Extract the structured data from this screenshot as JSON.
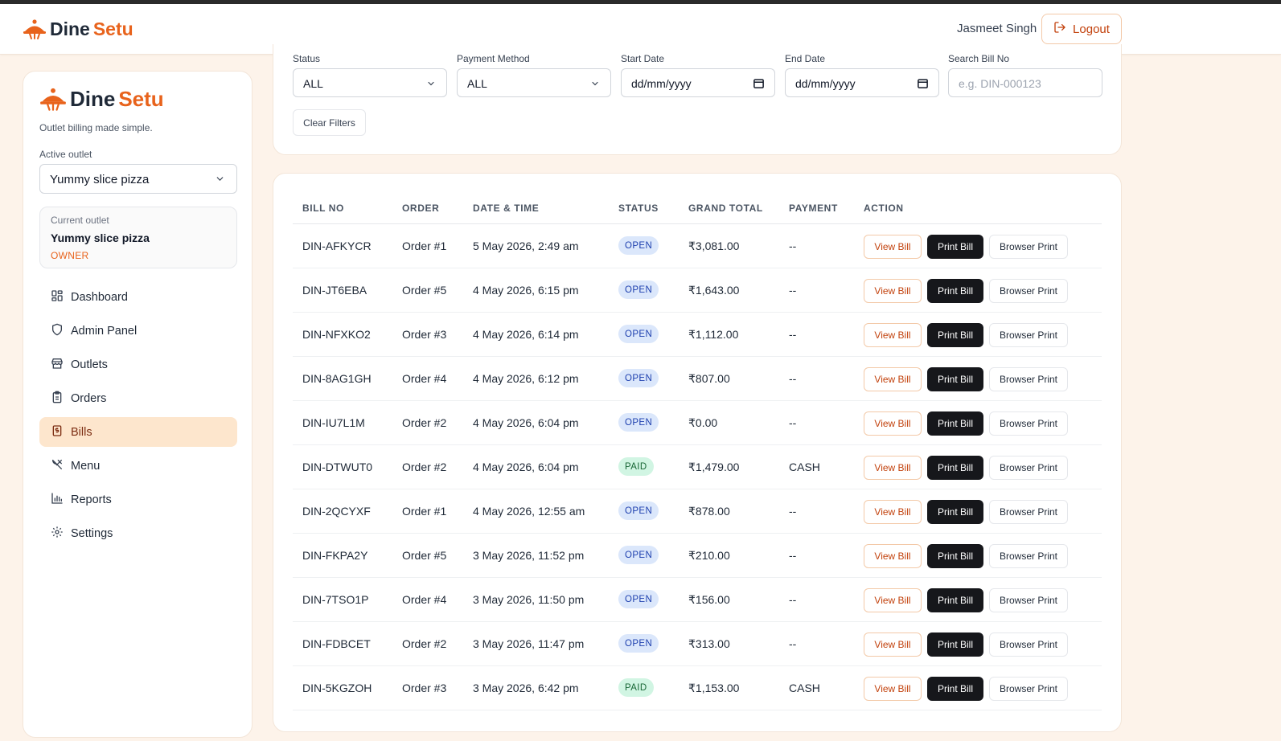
{
  "brand": {
    "word1": "Dine",
    "word2": "Setu",
    "tagline": "Outlet billing made simple."
  },
  "header": {
    "user_name": "Jasmeet Singh",
    "logout_label": "Logout"
  },
  "sidebar": {
    "active_outlet_label": "Active outlet",
    "active_outlet_value": "Yummy slice pizza",
    "current_outlet": {
      "label": "Current outlet",
      "name": "Yummy slice pizza",
      "role": "OWNER"
    },
    "items": [
      {
        "label": "Dashboard",
        "icon": "dashboard-icon"
      },
      {
        "label": "Admin Panel",
        "icon": "shield-icon"
      },
      {
        "label": "Outlets",
        "icon": "store-icon"
      },
      {
        "label": "Orders",
        "icon": "clipboard-icon"
      },
      {
        "label": "Bills",
        "icon": "receipt-icon"
      },
      {
        "label": "Menu",
        "icon": "utensils-icon"
      },
      {
        "label": "Reports",
        "icon": "bar-chart-icon"
      },
      {
        "label": "Settings",
        "icon": "gear-icon"
      }
    ],
    "active_item": "Bills"
  },
  "filters": {
    "status": {
      "label": "Status",
      "value": "ALL"
    },
    "payment_method": {
      "label": "Payment Method",
      "value": "ALL"
    },
    "start_date": {
      "label": "Start Date",
      "value": "dd/mm/yyyy"
    },
    "end_date": {
      "label": "End Date",
      "value": "dd/mm/yyyy"
    },
    "search_bill": {
      "label": "Search Bill No",
      "placeholder": "e.g. DIN-000123"
    },
    "clear_label": "Clear Filters"
  },
  "table": {
    "columns": [
      "BILL NO",
      "ORDER",
      "DATE & TIME",
      "STATUS",
      "GRAND TOTAL",
      "PAYMENT",
      "ACTION"
    ],
    "action_labels": {
      "view": "View Bill",
      "print": "Print Bill",
      "browser": "Browser Print"
    },
    "rows": [
      {
        "bill_no": "DIN-AFKYCR",
        "order": "Order #1",
        "datetime": "5 May 2026, 2:49 am",
        "status": "OPEN",
        "total": "₹3,081.00",
        "payment": "--"
      },
      {
        "bill_no": "DIN-JT6EBA",
        "order": "Order #5",
        "datetime": "4 May 2026, 6:15 pm",
        "status": "OPEN",
        "total": "₹1,643.00",
        "payment": "--"
      },
      {
        "bill_no": "DIN-NFXKO2",
        "order": "Order #3",
        "datetime": "4 May 2026, 6:14 pm",
        "status": "OPEN",
        "total": "₹1,112.00",
        "payment": "--"
      },
      {
        "bill_no": "DIN-8AG1GH",
        "order": "Order #4",
        "datetime": "4 May 2026, 6:12 pm",
        "status": "OPEN",
        "total": "₹807.00",
        "payment": "--"
      },
      {
        "bill_no": "DIN-IU7L1M",
        "order": "Order #2",
        "datetime": "4 May 2026, 6:04 pm",
        "status": "OPEN",
        "total": "₹0.00",
        "payment": "--"
      },
      {
        "bill_no": "DIN-DTWUT0",
        "order": "Order #2",
        "datetime": "4 May 2026, 6:04 pm",
        "status": "PAID",
        "total": "₹1,479.00",
        "payment": "CASH"
      },
      {
        "bill_no": "DIN-2QCYXF",
        "order": "Order #1",
        "datetime": "4 May 2026, 12:55 am",
        "status": "OPEN",
        "total": "₹878.00",
        "payment": "--"
      },
      {
        "bill_no": "DIN-FKPA2Y",
        "order": "Order #5",
        "datetime": "3 May 2026, 11:52 pm",
        "status": "OPEN",
        "total": "₹210.00",
        "payment": "--"
      },
      {
        "bill_no": "DIN-7TSO1P",
        "order": "Order #4",
        "datetime": "3 May 2026, 11:50 pm",
        "status": "OPEN",
        "total": "₹156.00",
        "payment": "--"
      },
      {
        "bill_no": "DIN-FDBCET",
        "order": "Order #2",
        "datetime": "3 May 2026, 11:47 pm",
        "status": "OPEN",
        "total": "₹313.00",
        "payment": "--"
      },
      {
        "bill_no": "DIN-5KGZOH",
        "order": "Order #3",
        "datetime": "3 May 2026, 6:42 pm",
        "status": "PAID",
        "total": "₹1,153.00",
        "payment": "CASH"
      }
    ]
  },
  "colors": {
    "accent": "#e8631c",
    "dark_button": "#16171b",
    "open_badge": "#dbe7fb",
    "paid_badge": "#d1f5e3",
    "background": "#fdf3ea"
  }
}
